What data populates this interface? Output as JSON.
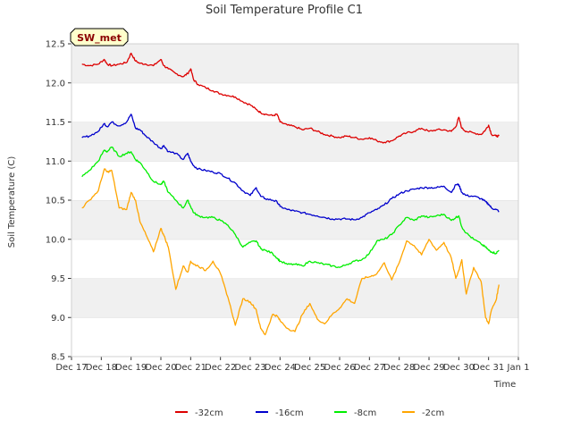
{
  "chart_data": {
    "type": "line",
    "title": "Soil Temperature Profile C1",
    "xlabel": "Time",
    "ylabel": "Soil Temperature (C)",
    "badge": "SW_met",
    "xlim": [
      0,
      15
    ],
    "ylim": [
      8.5,
      12.5
    ],
    "yticks": [
      8.5,
      9.0,
      9.5,
      10.0,
      10.5,
      11.0,
      11.5,
      12.0,
      12.5
    ],
    "ytick_labels": [
      "8.5",
      "9.0",
      "9.5",
      "10.0",
      "10.5",
      "11.0",
      "11.5",
      "12.0",
      "12.5"
    ],
    "xticks": [
      0,
      1,
      2,
      3,
      4,
      5,
      6,
      7,
      8,
      9,
      10,
      11,
      12,
      13,
      14,
      15
    ],
    "xtick_labels": [
      "Dec 17",
      "Dec 18",
      "Dec 19",
      "Dec 20",
      "Dec 21",
      "Dec 22",
      "Dec 23",
      "Dec 24",
      "Dec 25",
      "Dec 26",
      "Dec 27",
      "Dec 28",
      "Dec 29",
      "Dec 30",
      "Dec 31",
      "Jan 1"
    ],
    "legend_position": "bottom",
    "grid_bands": true,
    "x": [
      0.35,
      0.6,
      0.9,
      1.1,
      1.2,
      1.35,
      1.6,
      1.85,
      2.0,
      2.15,
      2.3,
      2.5,
      2.75,
      3.0,
      3.1,
      3.25,
      3.5,
      3.75,
      3.9,
      4.0,
      4.1,
      4.25,
      4.5,
      4.75,
      5.0,
      5.25,
      5.5,
      5.75,
      6.0,
      6.2,
      6.35,
      6.5,
      6.75,
      6.9,
      7.0,
      7.25,
      7.5,
      7.75,
      8.0,
      8.25,
      8.5,
      8.75,
      9.0,
      9.25,
      9.5,
      9.75,
      10.0,
      10.25,
      10.5,
      10.75,
      11.0,
      11.25,
      11.5,
      11.75,
      12.0,
      12.25,
      12.5,
      12.75,
      12.9,
      13.0,
      13.1,
      13.25,
      13.5,
      13.75,
      13.9,
      14.0,
      14.1,
      14.25,
      14.35
    ],
    "series": [
      {
        "name": "-32cm",
        "color": "#dd0000",
        "values": [
          12.24,
          12.22,
          12.24,
          12.3,
          12.24,
          12.22,
          12.24,
          12.26,
          12.38,
          12.28,
          12.25,
          12.24,
          12.22,
          12.3,
          12.22,
          12.18,
          12.12,
          12.08,
          12.12,
          12.18,
          12.04,
          11.98,
          11.94,
          11.9,
          11.86,
          11.84,
          11.82,
          11.76,
          11.72,
          11.66,
          11.62,
          11.6,
          11.58,
          11.6,
          11.5,
          11.46,
          11.44,
          11.4,
          11.42,
          11.38,
          11.34,
          11.32,
          11.3,
          11.32,
          11.3,
          11.28,
          11.3,
          11.26,
          11.24,
          11.26,
          11.32,
          11.36,
          11.38,
          11.42,
          11.38,
          11.4,
          11.4,
          11.38,
          11.44,
          11.56,
          11.42,
          11.38,
          11.36,
          11.34,
          11.4,
          11.46,
          11.34,
          11.32,
          11.32
        ]
      },
      {
        "name": "-16cm",
        "color": "#0000cc",
        "values": [
          11.3,
          11.32,
          11.38,
          11.48,
          11.44,
          11.5,
          11.45,
          11.5,
          11.6,
          11.42,
          11.4,
          11.32,
          11.24,
          11.16,
          11.2,
          11.12,
          11.1,
          11.02,
          11.1,
          11.0,
          10.94,
          10.9,
          10.88,
          10.86,
          10.84,
          10.78,
          10.72,
          10.62,
          10.56,
          10.66,
          10.55,
          10.52,
          10.5,
          10.48,
          10.42,
          10.38,
          10.36,
          10.34,
          10.32,
          10.3,
          10.28,
          10.26,
          10.26,
          10.26,
          10.25,
          10.28,
          10.34,
          10.38,
          10.44,
          10.52,
          10.58,
          10.62,
          10.64,
          10.66,
          10.66,
          10.66,
          10.68,
          10.6,
          10.7,
          10.7,
          10.6,
          10.56,
          10.55,
          10.52,
          10.48,
          10.45,
          10.4,
          10.38,
          10.36
        ]
      },
      {
        "name": "-8cm",
        "color": "#00ee00",
        "values": [
          10.8,
          10.88,
          11.0,
          11.14,
          11.12,
          11.18,
          11.06,
          11.1,
          11.12,
          11.02,
          10.98,
          10.88,
          10.74,
          10.7,
          10.74,
          10.6,
          10.5,
          10.4,
          10.5,
          10.42,
          10.34,
          10.3,
          10.28,
          10.28,
          10.24,
          10.18,
          10.06,
          9.9,
          9.96,
          9.98,
          9.88,
          9.86,
          9.82,
          9.76,
          9.72,
          9.68,
          9.68,
          9.66,
          9.72,
          9.7,
          9.68,
          9.66,
          9.64,
          9.68,
          9.72,
          9.74,
          9.82,
          9.98,
          10.0,
          10.06,
          10.18,
          10.28,
          10.24,
          10.3,
          10.28,
          10.3,
          10.32,
          10.24,
          10.28,
          10.3,
          10.16,
          10.08,
          10.0,
          9.94,
          9.9,
          9.86,
          9.84,
          9.82,
          9.86
        ]
      },
      {
        "name": "-2cm",
        "color": "#ffa500",
        "values": [
          10.4,
          10.5,
          10.62,
          10.9,
          10.86,
          10.88,
          10.4,
          10.38,
          10.6,
          10.5,
          10.22,
          10.06,
          9.84,
          10.14,
          10.05,
          9.9,
          9.36,
          9.66,
          9.58,
          9.72,
          9.68,
          9.66,
          9.6,
          9.72,
          9.56,
          9.26,
          8.9,
          9.24,
          9.2,
          9.1,
          8.86,
          8.78,
          9.04,
          9.02,
          8.96,
          8.86,
          8.82,
          9.04,
          9.18,
          8.98,
          8.92,
          9.04,
          9.12,
          9.24,
          9.18,
          9.5,
          9.52,
          9.56,
          9.7,
          9.48,
          9.7,
          9.98,
          9.92,
          9.8,
          10.0,
          9.86,
          9.96,
          9.76,
          9.5,
          9.6,
          9.74,
          9.3,
          9.64,
          9.46,
          9.0,
          8.92,
          9.1,
          9.22,
          9.42
        ]
      }
    ]
  }
}
